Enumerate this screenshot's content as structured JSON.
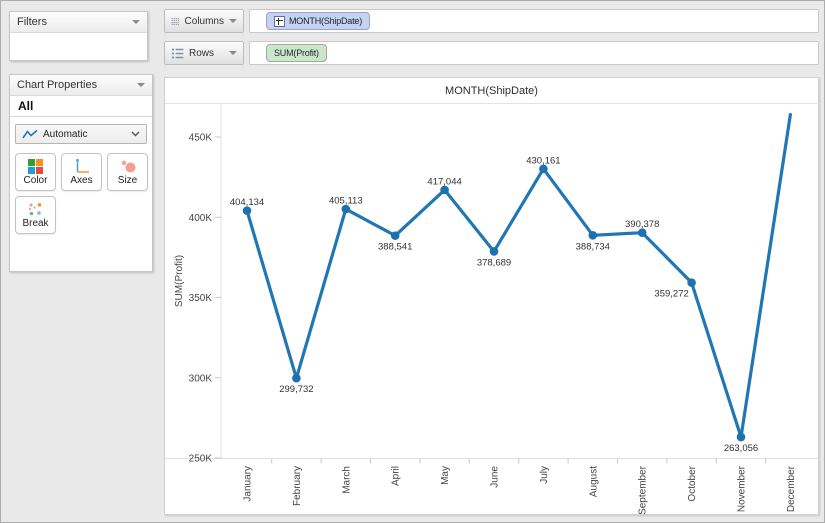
{
  "sidebar": {
    "filters_title": "Filters",
    "chart_properties": {
      "title": "Chart Properties",
      "scope": "All",
      "chart_type": "Automatic",
      "buttons": [
        {
          "label": "Color",
          "icon": "color-grid-icon"
        },
        {
          "label": "Axes",
          "icon": "axes-icon"
        },
        {
          "label": "Size",
          "icon": "size-circles-icon"
        },
        {
          "label": "Break",
          "icon": "break-dots-icon"
        }
      ],
      "color_icon_palette": [
        "#2fa12f",
        "#fb8d22",
        "#219cd8",
        "#e84b38"
      ]
    }
  },
  "shelves": {
    "columns": {
      "label": "Columns",
      "pill": "MONTH(ShipDate)"
    },
    "rows": {
      "label": "Rows",
      "pill": "SUM(Profit)"
    },
    "pill_colors": {
      "dimension_bg": "#c5d3f0",
      "dimension_border": "#94a6cf",
      "measure_bg": "#cde5cd",
      "measure_border": "#94b294"
    }
  },
  "chart_data": {
    "type": "line",
    "title": "MONTH(ShipDate)",
    "ylabel": "SUM(Profit)",
    "series_name": "SUM(Profit)",
    "line_color": "#2077b4",
    "marker_color": "#1d72ae",
    "grid": "off",
    "categories": [
      "January",
      "February",
      "March",
      "April",
      "May",
      "June",
      "July",
      "August",
      "September",
      "October",
      "November",
      "December"
    ],
    "values": [
      404134,
      299732,
      405113,
      388541,
      417044,
      378689,
      430161,
      388734,
      390378,
      359272,
      263056,
      464000
    ],
    "point_labels": [
      "404,134",
      "299,732",
      "405,113",
      "388,541",
      "417,044",
      "378,689",
      "430,161",
      "388,734",
      "390,378",
      "359,272",
      "263,056",
      ""
    ],
    "label_positions": [
      "above",
      "below",
      "above",
      "below",
      "above",
      "below",
      "above",
      "below",
      "above",
      "below-left",
      "below",
      "none"
    ],
    "markers": [
      true,
      true,
      true,
      true,
      true,
      true,
      true,
      true,
      true,
      true,
      true,
      false
    ],
    "yticks": [
      {
        "label": "450K",
        "value": 450000
      },
      {
        "label": "400K",
        "value": 400000
      },
      {
        "label": "350K",
        "value": 350000
      },
      {
        "label": "300K",
        "value": 300000
      },
      {
        "label": "250K",
        "value": 250000
      }
    ],
    "ylim": [
      249400,
      470500
    ]
  }
}
